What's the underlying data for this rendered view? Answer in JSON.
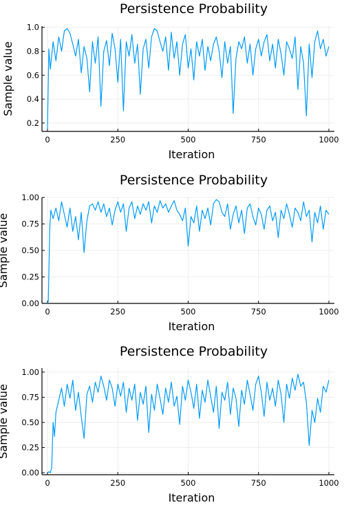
{
  "chart_data": [
    {
      "type": "line",
      "title": "Persistence Probability",
      "xlabel": "Iteration",
      "ylabel": "Sample value",
      "xlim": [
        0,
        1000
      ],
      "ylim": [
        0.13,
        1.01
      ],
      "xticks": [
        0,
        250,
        500,
        750,
        1000
      ],
      "xtick_labels": [
        "0",
        "250",
        "500",
        "750",
        "1000"
      ],
      "yticks": [
        0.2,
        0.4,
        0.6,
        0.8,
        1.0
      ],
      "ytick_labels": [
        "0.2",
        "0.4",
        "0.6",
        "0.8",
        "1.0"
      ],
      "grid": true,
      "legend": "none",
      "series": [
        {
          "color": "#009af9",
          "x": [
            0,
            5,
            10,
            20,
            30,
            40,
            50,
            60,
            70,
            80,
            90,
            100,
            110,
            120,
            130,
            140,
            150,
            160,
            170,
            180,
            190,
            200,
            210,
            220,
            230,
            240,
            250,
            260,
            270,
            280,
            290,
            300,
            310,
            320,
            330,
            340,
            350,
            360,
            370,
            380,
            390,
            400,
            410,
            420,
            430,
            440,
            450,
            460,
            470,
            480,
            490,
            500,
            510,
            520,
            530,
            540,
            550,
            560,
            570,
            580,
            590,
            600,
            610,
            620,
            630,
            640,
            650,
            660,
            670,
            680,
            690,
            700,
            710,
            720,
            730,
            740,
            750,
            760,
            770,
            780,
            790,
            800,
            810,
            820,
            830,
            840,
            850,
            860,
            870,
            880,
            890,
            900,
            910,
            920,
            930,
            940,
            950,
            960,
            970,
            980,
            990,
            1000
          ],
          "y": [
            0.15,
            0.82,
            0.65,
            0.88,
            0.72,
            0.92,
            0.8,
            0.97,
            0.99,
            0.95,
            0.86,
            0.76,
            0.9,
            0.62,
            0.84,
            0.74,
            0.46,
            0.88,
            0.7,
            0.92,
            0.34,
            0.8,
            0.89,
            0.68,
            0.95,
            0.82,
            0.54,
            0.9,
            0.3,
            0.88,
            0.76,
            0.94,
            0.7,
            0.86,
            0.44,
            0.82,
            0.9,
            0.66,
            0.92,
            0.99,
            0.97,
            0.88,
            0.8,
            0.92,
            0.64,
            0.96,
            0.74,
            0.88,
            0.6,
            0.86,
            0.94,
            0.66,
            0.82,
            0.56,
            0.88,
            0.76,
            0.9,
            0.64,
            0.84,
            0.72,
            0.86,
            0.92,
            0.8,
            0.58,
            0.88,
            0.7,
            0.84,
            0.28,
            0.74,
            0.88,
            0.82,
            0.92,
            0.7,
            0.86,
            0.6,
            0.82,
            0.9,
            0.76,
            0.88,
            0.94,
            0.72,
            0.86,
            0.66,
            0.9,
            0.78,
            0.6,
            0.88,
            0.82,
            0.74,
            0.92,
            0.48,
            0.84,
            0.7,
            0.26,
            0.86,
            0.58,
            0.88,
            0.97,
            0.82,
            0.9,
            0.76,
            0.84
          ]
        }
      ]
    },
    {
      "type": "line",
      "title": "Persistence Probability",
      "xlabel": "Iteration",
      "ylabel": "Sample value",
      "xlim": [
        0,
        1000
      ],
      "ylim": [
        0,
        1.0
      ],
      "xticks": [
        0,
        250,
        500,
        750,
        1000
      ],
      "xtick_labels": [
        "0",
        "250",
        "500",
        "750",
        "1000"
      ],
      "yticks": [
        0,
        0.25,
        0.5,
        0.75,
        1.0
      ],
      "ytick_labels": [
        "0.00",
        "0.25",
        "0.50",
        "0.75",
        "1.00"
      ],
      "grid": true,
      "legend": "none",
      "series": [
        {
          "color": "#009af9",
          "x": [
            0,
            3,
            8,
            12,
            20,
            30,
            40,
            50,
            60,
            70,
            80,
            90,
            100,
            110,
            120,
            130,
            140,
            150,
            160,
            170,
            180,
            190,
            200,
            210,
            220,
            230,
            240,
            250,
            260,
            270,
            280,
            290,
            300,
            310,
            320,
            330,
            340,
            350,
            360,
            370,
            380,
            390,
            400,
            410,
            420,
            430,
            440,
            450,
            460,
            470,
            480,
            490,
            500,
            510,
            520,
            530,
            540,
            550,
            560,
            570,
            580,
            590,
            600,
            610,
            620,
            630,
            640,
            650,
            660,
            670,
            680,
            690,
            700,
            710,
            720,
            730,
            740,
            750,
            760,
            770,
            780,
            790,
            800,
            810,
            820,
            830,
            840,
            850,
            860,
            870,
            880,
            890,
            900,
            910,
            920,
            930,
            940,
            950,
            960,
            970,
            980,
            990,
            1000
          ],
          "y": [
            0.0,
            0.02,
            0.7,
            0.88,
            0.8,
            0.9,
            0.78,
            0.96,
            0.84,
            0.72,
            0.9,
            0.68,
            0.82,
            0.6,
            0.86,
            0.48,
            0.78,
            0.92,
            0.94,
            0.88,
            0.96,
            0.86,
            0.94,
            0.82,
            0.9,
            0.74,
            0.88,
            0.96,
            0.86,
            0.94,
            0.68,
            0.9,
            0.96,
            0.8,
            0.92,
            0.84,
            0.94,
            0.88,
            0.96,
            0.76,
            0.92,
            0.86,
            0.97,
            0.9,
            0.94,
            0.86,
            0.92,
            0.97,
            0.88,
            0.84,
            0.78,
            0.9,
            0.54,
            0.82,
            0.76,
            0.92,
            0.68,
            0.88,
            0.8,
            0.9,
            0.74,
            0.94,
            0.98,
            0.96,
            0.86,
            0.82,
            0.94,
            0.7,
            0.84,
            0.92,
            0.76,
            0.88,
            0.66,
            0.9,
            0.94,
            0.82,
            0.74,
            0.9,
            0.84,
            0.7,
            0.88,
            0.92,
            0.78,
            0.86,
            0.62,
            0.88,
            0.8,
            0.94,
            0.84,
            0.72,
            0.9,
            0.86,
            0.78,
            0.96,
            0.82,
            0.88,
            0.58,
            0.86,
            0.76,
            0.92,
            0.7,
            0.88,
            0.84
          ]
        }
      ]
    },
    {
      "type": "line",
      "title": "Persistence Probability",
      "xlabel": "Iteration",
      "ylabel": "Sample value",
      "xlim": [
        0,
        1000
      ],
      "ylim": [
        -0.02,
        1.04
      ],
      "xticks": [
        0,
        250,
        500,
        750,
        1000
      ],
      "xtick_labels": [
        "0",
        "250",
        "500",
        "750",
        "1000"
      ],
      "yticks": [
        0,
        0.25,
        0.5,
        0.75,
        1.0
      ],
      "ytick_labels": [
        "0.00",
        "0.25",
        "0.50",
        "0.75",
        "1.00"
      ],
      "grid": true,
      "legend": "none",
      "series": [
        {
          "color": "#009af9",
          "x": [
            0,
            5,
            10,
            15,
            20,
            25,
            30,
            40,
            50,
            60,
            70,
            80,
            90,
            100,
            110,
            120,
            130,
            140,
            150,
            160,
            170,
            180,
            190,
            200,
            210,
            220,
            230,
            240,
            250,
            260,
            270,
            280,
            290,
            300,
            310,
            320,
            330,
            340,
            350,
            360,
            370,
            380,
            390,
            400,
            410,
            420,
            430,
            440,
            450,
            460,
            470,
            480,
            490,
            500,
            510,
            520,
            530,
            540,
            550,
            560,
            570,
            580,
            590,
            600,
            610,
            620,
            630,
            640,
            650,
            660,
            670,
            680,
            690,
            700,
            710,
            720,
            730,
            740,
            750,
            760,
            770,
            780,
            790,
            800,
            810,
            820,
            830,
            840,
            850,
            860,
            870,
            880,
            890,
            900,
            910,
            920,
            930,
            940,
            950,
            960,
            970,
            980,
            990,
            1000
          ],
          "y": [
            0.0,
            0.01,
            0.0,
            0.05,
            0.5,
            0.36,
            0.6,
            0.72,
            0.84,
            0.66,
            0.88,
            0.74,
            0.92,
            0.62,
            0.8,
            0.56,
            0.34,
            0.78,
            0.86,
            0.7,
            0.9,
            0.8,
            0.96,
            0.86,
            0.72,
            0.92,
            0.84,
            0.66,
            0.88,
            0.76,
            0.9,
            0.6,
            0.84,
            0.72,
            0.88,
            0.52,
            0.8,
            0.68,
            0.86,
            0.4,
            0.78,
            0.62,
            0.88,
            0.74,
            0.58,
            0.84,
            0.7,
            0.9,
            0.66,
            0.76,
            0.48,
            0.86,
            0.72,
            0.92,
            0.8,
            0.64,
            0.88,
            0.54,
            0.82,
            0.7,
            0.92,
            0.76,
            0.6,
            0.86,
            0.44,
            0.8,
            0.72,
            0.9,
            0.58,
            0.84,
            0.74,
            0.46,
            0.82,
            0.68,
            0.92,
            0.78,
            0.62,
            0.88,
            0.96,
            0.8,
            0.56,
            0.9,
            0.72,
            0.84,
            0.66,
            0.92,
            0.78,
            0.5,
            0.88,
            0.74,
            0.94,
            0.82,
            0.98,
            0.86,
            0.9,
            0.7,
            0.27,
            0.62,
            0.5,
            0.74,
            0.6,
            0.86,
            0.8,
            0.92
          ]
        }
      ]
    }
  ]
}
